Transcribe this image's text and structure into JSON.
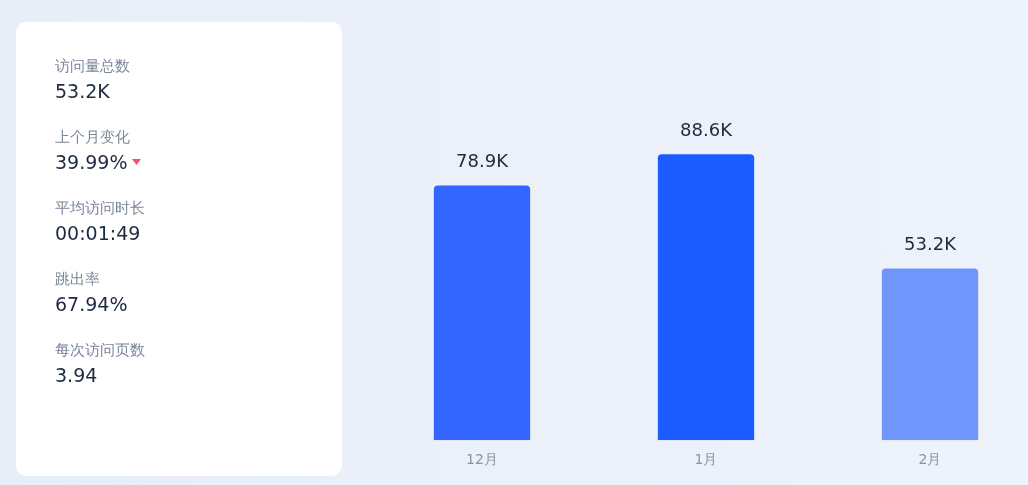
{
  "chart_data": [
    {
      "type": "other",
      "annotations": [
        "访问量总数",
        "53.2K",
        "上个月变化",
        "39.99%",
        "平均访问时长",
        "00:01:49",
        "跳出率",
        "67.94%",
        "每次访问页数",
        "3.94"
      ]
    },
    {
      "type": "bar",
      "categories": [
        "12月",
        "1月",
        "2月"
      ],
      "values": [
        78.9,
        88.6,
        53.2
      ],
      "value_labels": [
        "78.9K",
        "88.6K",
        "53.2K"
      ],
      "colors": [
        "#3366ff",
        "#1c5bff",
        "#7095fb"
      ],
      "grid": false,
      "legend": false,
      "tick_labels": "x"
    }
  ]
}
